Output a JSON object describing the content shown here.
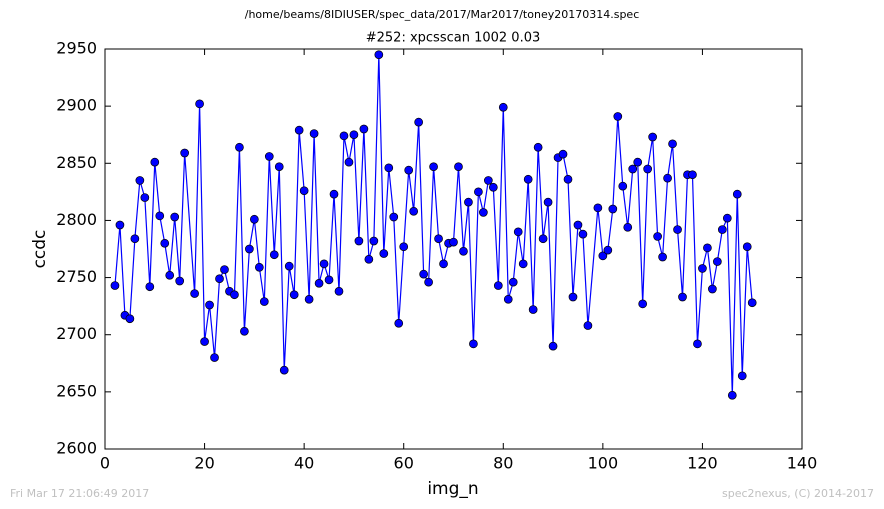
{
  "chart_data": {
    "type": "line",
    "suptitle": "/home/beams/8IDIUSER/spec_data/2017/Mar2017/toney20170314.spec",
    "title": "#252: xpcsscan 1002 0.03",
    "xlabel": "img_n",
    "ylabel": "ccdc",
    "footer_left": "Fri Mar 17 21:06:49 2017",
    "footer_right": "spec2nexus, (C) 2014-2017",
    "xlim": [
      0,
      140
    ],
    "xticks": [
      0,
      20,
      40,
      60,
      80,
      100,
      120,
      140
    ],
    "ylim": [
      2600,
      2950
    ],
    "yticks": [
      2600,
      2650,
      2700,
      2750,
      2800,
      2850,
      2900,
      2950
    ],
    "x": [
      2,
      3,
      4,
      5,
      6,
      7,
      8,
      9,
      10,
      11,
      12,
      13,
      14,
      15,
      16,
      18,
      19,
      20,
      21,
      22,
      23,
      24,
      25,
      26,
      27,
      28,
      29,
      30,
      31,
      32,
      33,
      34,
      35,
      36,
      37,
      38,
      39,
      40,
      41,
      42,
      43,
      44,
      45,
      46,
      47,
      48,
      49,
      50,
      51,
      52,
      53,
      54,
      55,
      56,
      57,
      58,
      59,
      60,
      61,
      62,
      63,
      64,
      65,
      66,
      67,
      68,
      69,
      70,
      71,
      72,
      73,
      74,
      75,
      76,
      77,
      78,
      79,
      80,
      81,
      82,
      83,
      84,
      85,
      86,
      87,
      88,
      89,
      90,
      91,
      92,
      93,
      94,
      95,
      96,
      97,
      99,
      100,
      101,
      102,
      103,
      104,
      105,
      106,
      107,
      108,
      109,
      110,
      111,
      112,
      113,
      114,
      115,
      116,
      117,
      118,
      119,
      120,
      121,
      122,
      123,
      124,
      125,
      126,
      127,
      128,
      129,
      130
    ],
    "series": [
      {
        "name": "ccdc",
        "color": "#0000ff",
        "values": [
          2743,
          2796,
          2717,
          2714,
          2784,
          2835,
          2820,
          2742,
          2851,
          2804,
          2780,
          2752,
          2803,
          2747,
          2859,
          2736,
          2902,
          2694,
          2726,
          2680,
          2749,
          2757,
          2738,
          2735,
          2864,
          2703,
          2775,
          2801,
          2759,
          2729,
          2856,
          2770,
          2847,
          2669,
          2760,
          2735,
          2879,
          2826,
          2731,
          2876,
          2745,
          2762,
          2748,
          2823,
          2738,
          2874,
          2851,
          2875,
          2782,
          2880,
          2766,
          2782,
          2945,
          2771,
          2846,
          2803,
          2710,
          2777,
          2844,
          2808,
          2886,
          2753,
          2746,
          2847,
          2784,
          2762,
          2780,
          2781,
          2847,
          2773,
          2816,
          2692,
          2825,
          2807,
          2835,
          2829,
          2743,
          2899,
          2731,
          2746,
          2790,
          2762,
          2836,
          2722,
          2864,
          2784,
          2816,
          2690,
          2855,
          2858,
          2836,
          2733,
          2796,
          2788,
          2708,
          2811,
          2769,
          2774,
          2810,
          2891,
          2830,
          2794,
          2845,
          2851,
          2727,
          2845,
          2873,
          2786,
          2768,
          2837,
          2867,
          2792,
          2733,
          2840,
          2840,
          2692,
          2758,
          2776,
          2740,
          2764,
          2792,
          2802,
          2647,
          2823,
          2664,
          2777,
          2728
        ]
      }
    ]
  }
}
